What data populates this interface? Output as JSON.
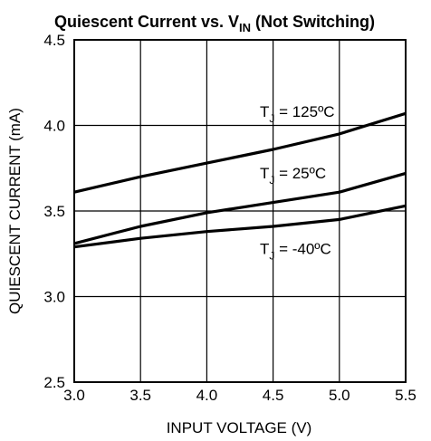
{
  "chart_data": {
    "type": "line",
    "title_main": "Quiescent Current vs. V",
    "title_sub": "IN",
    "title_tail": " (Not Switching)",
    "xlabel": "INPUT VOLTAGE (V)",
    "ylabel": "QUIESCENT CURRENT (mA)",
    "xlim": [
      3.0,
      5.5
    ],
    "ylim": [
      2.5,
      4.5
    ],
    "x_ticks": [
      "3.0",
      "3.5",
      "4.0",
      "4.5",
      "5.0",
      "5.5"
    ],
    "y_ticks": [
      "2.5",
      "3.0",
      "3.5",
      "4.0",
      "4.5"
    ],
    "grid": true,
    "series": [
      {
        "label_main": "T",
        "label_sub": "J",
        "label_tail": " = 125ºC",
        "x": [
          3.0,
          3.5,
          4.0,
          4.5,
          5.0,
          5.5
        ],
        "values": [
          3.61,
          3.7,
          3.78,
          3.86,
          3.95,
          4.07
        ]
      },
      {
        "label_main": "T",
        "label_sub": "J",
        "label_tail": " = 25ºC",
        "x": [
          3.0,
          3.5,
          4.0,
          4.5,
          5.0,
          5.5
        ],
        "values": [
          3.31,
          3.41,
          3.49,
          3.55,
          3.61,
          3.72
        ]
      },
      {
        "label_main": "T",
        "label_sub": "J",
        "label_tail": " = -40ºC",
        "x": [
          3.0,
          3.5,
          4.0,
          4.5,
          5.0,
          5.5
        ],
        "values": [
          3.29,
          3.34,
          3.38,
          3.41,
          3.45,
          3.53
        ]
      }
    ]
  }
}
